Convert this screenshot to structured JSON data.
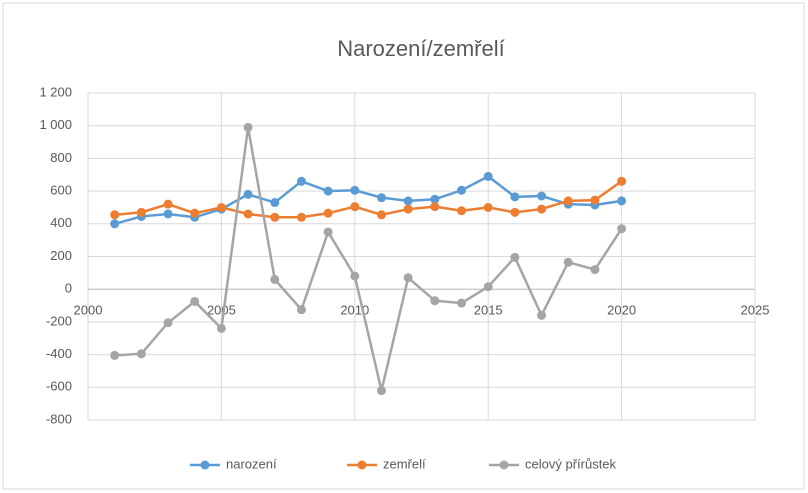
{
  "chart_data": {
    "type": "line",
    "title": "Narození/zemřelí",
    "x": [
      2001,
      2002,
      2003,
      2004,
      2005,
      2006,
      2007,
      2008,
      2009,
      2010,
      2011,
      2012,
      2013,
      2014,
      2015,
      2016,
      2017,
      2018,
      2019,
      2020
    ],
    "series": [
      {
        "name": "narození",
        "color": "#5b9bd5",
        "values": [
          400,
          445,
          460,
          440,
          490,
          580,
          530,
          660,
          600,
          605,
          560,
          540,
          550,
          605,
          690,
          565,
          570,
          520,
          515,
          540
        ]
      },
      {
        "name": "zemřelí",
        "color": "#ed7d31",
        "values": [
          455,
          470,
          520,
          465,
          500,
          460,
          440,
          440,
          465,
          505,
          455,
          490,
          505,
          480,
          500,
          470,
          490,
          540,
          545,
          660
        ]
      },
      {
        "name": "celový přírůstek",
        "color": "#a5a5a5",
        "values": [
          -405,
          -395,
          -205,
          -75,
          -240,
          990,
          60,
          -125,
          350,
          80,
          -620,
          70,
          -70,
          -85,
          15,
          195,
          -160,
          165,
          120,
          370
        ]
      }
    ],
    "xlim": [
      2000,
      2025
    ],
    "xticks": [
      2000,
      2005,
      2010,
      2015,
      2020,
      2025
    ],
    "ylim": [
      -800,
      1200
    ],
    "yticks": [
      {
        "value": 1200,
        "label": "1 200"
      },
      {
        "value": 1000,
        "label": "1 000"
      },
      800,
      600,
      400,
      200,
      0,
      -200,
      -400,
      -600,
      -800
    ],
    "grid": true,
    "legend": "bottom"
  }
}
